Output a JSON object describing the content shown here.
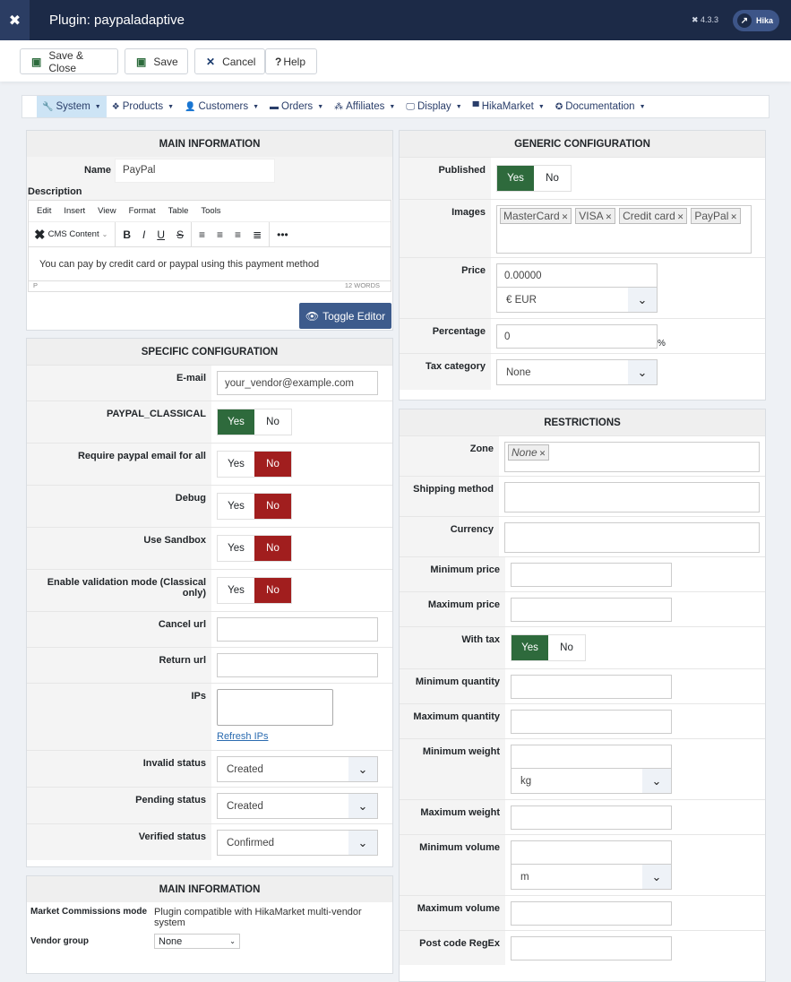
{
  "header": {
    "title": "Plugin: paypaladaptive",
    "version": "4.3.3",
    "user_label": "Hika"
  },
  "toolbar": {
    "save_close": "Save & Close",
    "save": "Save",
    "cancel": "Cancel",
    "help": "Help"
  },
  "menu": [
    {
      "label": "System",
      "icon": "wrench-icon",
      "glyph": "🔧",
      "active": true
    },
    {
      "label": "Products",
      "icon": "cubes-icon",
      "glyph": "❖"
    },
    {
      "label": "Customers",
      "icon": "user-icon",
      "glyph": "👤"
    },
    {
      "label": "Orders",
      "icon": "credit-card-icon",
      "glyph": "▬"
    },
    {
      "label": "Affiliates",
      "icon": "users-icon",
      "glyph": "⁂"
    },
    {
      "label": "Display",
      "icon": "monitor-icon",
      "glyph": "🖵"
    },
    {
      "label": "HikaMarket",
      "icon": "store-icon",
      "glyph": "▀"
    },
    {
      "label": "Documentation",
      "icon": "lifebuoy-icon",
      "glyph": "✪"
    }
  ],
  "main_info": {
    "heading": "MAIN INFORMATION",
    "name_label": "Name",
    "name_value": "PayPal",
    "description_label": "Description",
    "editor": {
      "menus": [
        "Edit",
        "Insert",
        "View",
        "Format",
        "Table",
        "Tools"
      ],
      "cms_content": "CMS Content",
      "body": "You can pay by credit card or paypal using this payment method",
      "path": "P",
      "words": "12 WORDS"
    },
    "toggle_editor": "Toggle Editor"
  },
  "specific": {
    "heading": "SPECIFIC CONFIGURATION",
    "rows": [
      {
        "label": "E-mail",
        "type": "text",
        "value": "your_vendor@example.com"
      },
      {
        "label": "PAYPAL_CLASSICAL",
        "type": "toggle",
        "value": "Yes"
      },
      {
        "label": "Require paypal email for all",
        "type": "toggle",
        "value": "No"
      },
      {
        "label": "Debug",
        "type": "toggle",
        "value": "No"
      },
      {
        "label": "Use Sandbox",
        "type": "toggle",
        "value": "No"
      },
      {
        "label": "Enable validation mode (Classical only)",
        "type": "toggle",
        "value": "No"
      },
      {
        "label": "Cancel url",
        "type": "text",
        "value": ""
      },
      {
        "label": "Return url",
        "type": "text",
        "value": ""
      },
      {
        "label": "IPs",
        "type": "ips",
        "value": "",
        "link": "Refresh IPs"
      },
      {
        "label": "Invalid status",
        "type": "select",
        "value": "Created"
      },
      {
        "label": "Pending status",
        "type": "select",
        "value": "Created"
      },
      {
        "label": "Verified status",
        "type": "select",
        "value": "Confirmed"
      }
    ]
  },
  "market": {
    "heading": "MAIN INFORMATION",
    "mode_label": "Market Commissions mode",
    "mode_value": "Plugin compatible with HikaMarket multi-vendor system",
    "vendor_label": "Vendor group",
    "vendor_value": "None"
  },
  "generic": {
    "heading": "GENERIC CONFIGURATION",
    "rows": [
      {
        "label": "Published",
        "type": "toggle",
        "value": "Yes"
      },
      {
        "label": "Images",
        "type": "tags",
        "tags": [
          "MasterCard",
          "VISA",
          "Credit card",
          "PayPal"
        ]
      },
      {
        "label": "Price",
        "type": "combo",
        "value": "0.00000",
        "unit": "€ EUR"
      },
      {
        "label": "Percentage",
        "type": "percent",
        "value": "0",
        "suffix": "%"
      },
      {
        "label": "Tax category",
        "type": "select",
        "value": "None"
      }
    ]
  },
  "restrictions": {
    "heading": "RESTRICTIONS",
    "rows": [
      {
        "label": "Zone",
        "type": "tags2",
        "tags": [
          "None"
        ]
      },
      {
        "label": "Shipping method",
        "type": "big",
        "value": ""
      },
      {
        "label": "Currency",
        "type": "big",
        "value": ""
      },
      {
        "label": "Minimum price",
        "type": "short",
        "value": ""
      },
      {
        "label": "Maximum price",
        "type": "short",
        "value": ""
      },
      {
        "label": "With tax",
        "type": "toggle",
        "value": "Yes"
      },
      {
        "label": "Minimum quantity",
        "type": "short",
        "value": ""
      },
      {
        "label": "Maximum quantity",
        "type": "short",
        "value": ""
      },
      {
        "label": "Minimum weight",
        "type": "combo",
        "value": "",
        "unit": "kg"
      },
      {
        "label": "Maximum weight",
        "type": "short",
        "value": ""
      },
      {
        "label": "Minimum volume",
        "type": "combo",
        "value": "",
        "unit": "m"
      },
      {
        "label": "Maximum volume",
        "type": "short",
        "value": ""
      },
      {
        "label": "Post code RegEx",
        "type": "short",
        "value": ""
      }
    ]
  },
  "colors": {
    "header": "#1c2a47",
    "yes_active": "#2e6a3c",
    "no_active": "#a11e1e",
    "button": "#3d5b8c"
  }
}
